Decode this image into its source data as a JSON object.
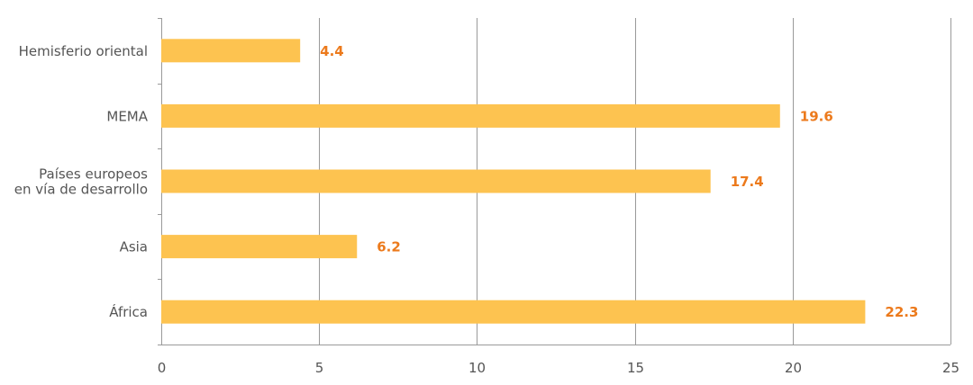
{
  "colors": {
    "bar": "#FDC350",
    "value_label": "#EC7A1C",
    "grid": "#9a9a9a",
    "text": "#555555"
  },
  "chart_data": {
    "type": "bar",
    "orientation": "horizontal",
    "categories": [
      [
        "Hemisferio oriental"
      ],
      [
        "MEMA"
      ],
      [
        "Países europeos",
        "en vía de desarrollo"
      ],
      [
        "Asia"
      ],
      [
        "África"
      ]
    ],
    "values": [
      4.4,
      19.6,
      17.4,
      6.2,
      22.3
    ],
    "value_labels": [
      "4.4",
      "19.6",
      "17.4",
      "6.2",
      "22.3"
    ],
    "xlim": [
      0,
      25
    ],
    "xticks": [
      0,
      5,
      10,
      15,
      20,
      25
    ],
    "grid": "vertical",
    "title": "",
    "xlabel": "",
    "ylabel": ""
  }
}
